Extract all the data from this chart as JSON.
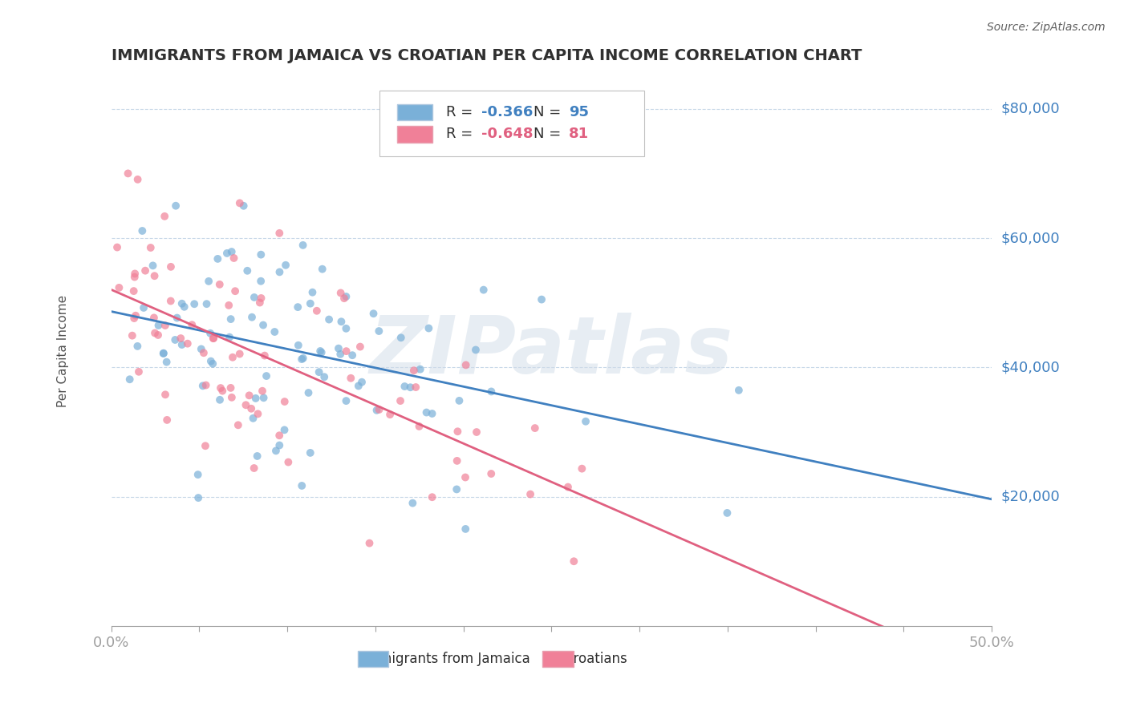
{
  "title": "IMMIGRANTS FROM JAMAICA VS CROATIAN PER CAPITA INCOME CORRELATION CHART",
  "source_text": "Source: ZipAtlas.com",
  "xlabel": "",
  "ylabel": "Per Capita Income",
  "xlim": [
    0.0,
    0.5
  ],
  "ylim": [
    0,
    85000
  ],
  "yticks": [
    0,
    20000,
    40000,
    60000,
    80000
  ],
  "ytick_labels": [
    "",
    "$20,000",
    "$40,000",
    "$60,000",
    "$80,000"
  ],
  "xtick_labels": [
    "0.0%",
    "50.0%"
  ],
  "watermark": "ZIPatlas",
  "legend_entries": [
    {
      "label": "R = -0.366  N = 95",
      "color": "#a8c4e0"
    },
    {
      "label": "R = -0.648  N = 81",
      "color": "#f0a0b0"
    }
  ],
  "blue_color": "#7ab0d8",
  "pink_color": "#f08098",
  "blue_line_color": "#4080c0",
  "pink_line_color": "#e06080",
  "background_color": "#ffffff",
  "grid_color": "#c8d8e8",
  "title_color": "#303030",
  "axis_label_color": "#404040",
  "ytick_color": "#4080c0",
  "xtick_color": "#4080c0",
  "r_blue": -0.366,
  "n_blue": 95,
  "r_pink": -0.648,
  "n_pink": 81,
  "seed_blue": 42,
  "seed_pink": 123
}
